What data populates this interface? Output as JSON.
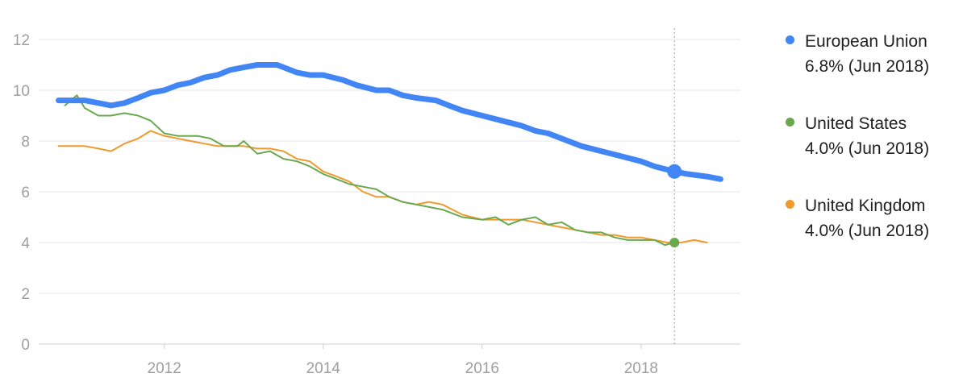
{
  "chart_data": {
    "type": "line",
    "x_ticks": [
      2012,
      2014,
      2016,
      2018
    ],
    "y_ticks": [
      0,
      2,
      4,
      6,
      8,
      10,
      12
    ],
    "xlim": [
      2010.42,
      2019.25
    ],
    "ylim": [
      0,
      12
    ],
    "grid": "horizontal",
    "legend_position": "right",
    "hover_x": 2018.42,
    "series": [
      {
        "name": "European Union",
        "value_label": "6.8% (Jun 2018)",
        "color": "#4285f4",
        "marker": {
          "x": 2018.42,
          "y": 6.8
        },
        "points": [
          [
            2010.67,
            9.6
          ],
          [
            2010.83,
            9.6
          ],
          [
            2011.0,
            9.6
          ],
          [
            2011.17,
            9.5
          ],
          [
            2011.33,
            9.4
          ],
          [
            2011.5,
            9.5
          ],
          [
            2011.67,
            9.7
          ],
          [
            2011.83,
            9.9
          ],
          [
            2012.0,
            10.0
          ],
          [
            2012.17,
            10.2
          ],
          [
            2012.33,
            10.3
          ],
          [
            2012.5,
            10.5
          ],
          [
            2012.67,
            10.6
          ],
          [
            2012.83,
            10.8
          ],
          [
            2013.0,
            10.9
          ],
          [
            2013.17,
            11.0
          ],
          [
            2013.42,
            11.0
          ],
          [
            2013.67,
            10.7
          ],
          [
            2013.83,
            10.6
          ],
          [
            2014.0,
            10.6
          ],
          [
            2014.25,
            10.4
          ],
          [
            2014.42,
            10.2
          ],
          [
            2014.67,
            10.0
          ],
          [
            2014.83,
            10.0
          ],
          [
            2015.0,
            9.8
          ],
          [
            2015.17,
            9.7
          ],
          [
            2015.42,
            9.6
          ],
          [
            2015.58,
            9.4
          ],
          [
            2015.75,
            9.2
          ],
          [
            2016.0,
            9.0
          ],
          [
            2016.25,
            8.8
          ],
          [
            2016.5,
            8.6
          ],
          [
            2016.67,
            8.4
          ],
          [
            2016.83,
            8.3
          ],
          [
            2017.0,
            8.1
          ],
          [
            2017.25,
            7.8
          ],
          [
            2017.5,
            7.6
          ],
          [
            2017.75,
            7.4
          ],
          [
            2018.0,
            7.2
          ],
          [
            2018.17,
            7.0
          ],
          [
            2018.42,
            6.8
          ],
          [
            2018.58,
            6.7
          ],
          [
            2018.83,
            6.6
          ],
          [
            2019.0,
            6.5
          ]
        ]
      },
      {
        "name": "United States",
        "value_label": "4.0% (Jun 2018)",
        "color": "#6aa84f",
        "marker": {
          "x": 2018.42,
          "y": 4.0
        },
        "points": [
          [
            2010.75,
            9.4
          ],
          [
            2010.9,
            9.8
          ],
          [
            2011.0,
            9.3
          ],
          [
            2011.17,
            9.0
          ],
          [
            2011.33,
            9.0
          ],
          [
            2011.5,
            9.1
          ],
          [
            2011.67,
            9.0
          ],
          [
            2011.83,
            8.8
          ],
          [
            2012.0,
            8.3
          ],
          [
            2012.17,
            8.2
          ],
          [
            2012.42,
            8.2
          ],
          [
            2012.58,
            8.1
          ],
          [
            2012.75,
            7.8
          ],
          [
            2012.92,
            7.8
          ],
          [
            2013.0,
            8.0
          ],
          [
            2013.17,
            7.5
          ],
          [
            2013.33,
            7.6
          ],
          [
            2013.5,
            7.3
          ],
          [
            2013.67,
            7.2
          ],
          [
            2013.83,
            7.0
          ],
          [
            2014.0,
            6.7
          ],
          [
            2014.17,
            6.5
          ],
          [
            2014.33,
            6.3
          ],
          [
            2014.5,
            6.2
          ],
          [
            2014.67,
            6.1
          ],
          [
            2014.83,
            5.8
          ],
          [
            2015.0,
            5.6
          ],
          [
            2015.17,
            5.5
          ],
          [
            2015.33,
            5.4
          ],
          [
            2015.5,
            5.3
          ],
          [
            2015.75,
            5.0
          ],
          [
            2016.0,
            4.9
          ],
          [
            2016.17,
            5.0
          ],
          [
            2016.33,
            4.7
          ],
          [
            2016.5,
            4.9
          ],
          [
            2016.67,
            5.0
          ],
          [
            2016.83,
            4.7
          ],
          [
            2017.0,
            4.8
          ],
          [
            2017.17,
            4.5
          ],
          [
            2017.33,
            4.4
          ],
          [
            2017.5,
            4.4
          ],
          [
            2017.67,
            4.2
          ],
          [
            2017.83,
            4.1
          ],
          [
            2018.0,
            4.1
          ],
          [
            2018.17,
            4.1
          ],
          [
            2018.3,
            3.9
          ],
          [
            2018.42,
            4.0
          ]
        ]
      },
      {
        "name": "United Kingdom",
        "value_label": "4.0% (Jun 2018)",
        "color": "#f09a2d",
        "marker": null,
        "points": [
          [
            2010.67,
            7.8
          ],
          [
            2010.83,
            7.8
          ],
          [
            2011.0,
            7.8
          ],
          [
            2011.17,
            7.7
          ],
          [
            2011.33,
            7.6
          ],
          [
            2011.5,
            7.9
          ],
          [
            2011.67,
            8.1
          ],
          [
            2011.83,
            8.4
          ],
          [
            2012.0,
            8.2
          ],
          [
            2012.17,
            8.1
          ],
          [
            2012.33,
            8.0
          ],
          [
            2012.5,
            7.9
          ],
          [
            2012.67,
            7.8
          ],
          [
            2012.83,
            7.8
          ],
          [
            2013.0,
            7.8
          ],
          [
            2013.17,
            7.7
          ],
          [
            2013.33,
            7.7
          ],
          [
            2013.5,
            7.6
          ],
          [
            2013.67,
            7.3
          ],
          [
            2013.83,
            7.2
          ],
          [
            2014.0,
            6.8
          ],
          [
            2014.17,
            6.6
          ],
          [
            2014.33,
            6.4
          ],
          [
            2014.5,
            6.0
          ],
          [
            2014.67,
            5.8
          ],
          [
            2014.83,
            5.8
          ],
          [
            2015.0,
            5.6
          ],
          [
            2015.17,
            5.5
          ],
          [
            2015.33,
            5.6
          ],
          [
            2015.5,
            5.5
          ],
          [
            2015.75,
            5.1
          ],
          [
            2016.0,
            4.9
          ],
          [
            2016.17,
            4.9
          ],
          [
            2016.5,
            4.9
          ],
          [
            2016.67,
            4.8
          ],
          [
            2016.83,
            4.7
          ],
          [
            2017.0,
            4.6
          ],
          [
            2017.17,
            4.5
          ],
          [
            2017.33,
            4.4
          ],
          [
            2017.5,
            4.3
          ],
          [
            2017.67,
            4.3
          ],
          [
            2017.83,
            4.2
          ],
          [
            2018.0,
            4.2
          ],
          [
            2018.17,
            4.1
          ],
          [
            2018.33,
            4.0
          ],
          [
            2018.5,
            4.0
          ],
          [
            2018.67,
            4.1
          ],
          [
            2018.83,
            4.0
          ]
        ]
      }
    ]
  }
}
